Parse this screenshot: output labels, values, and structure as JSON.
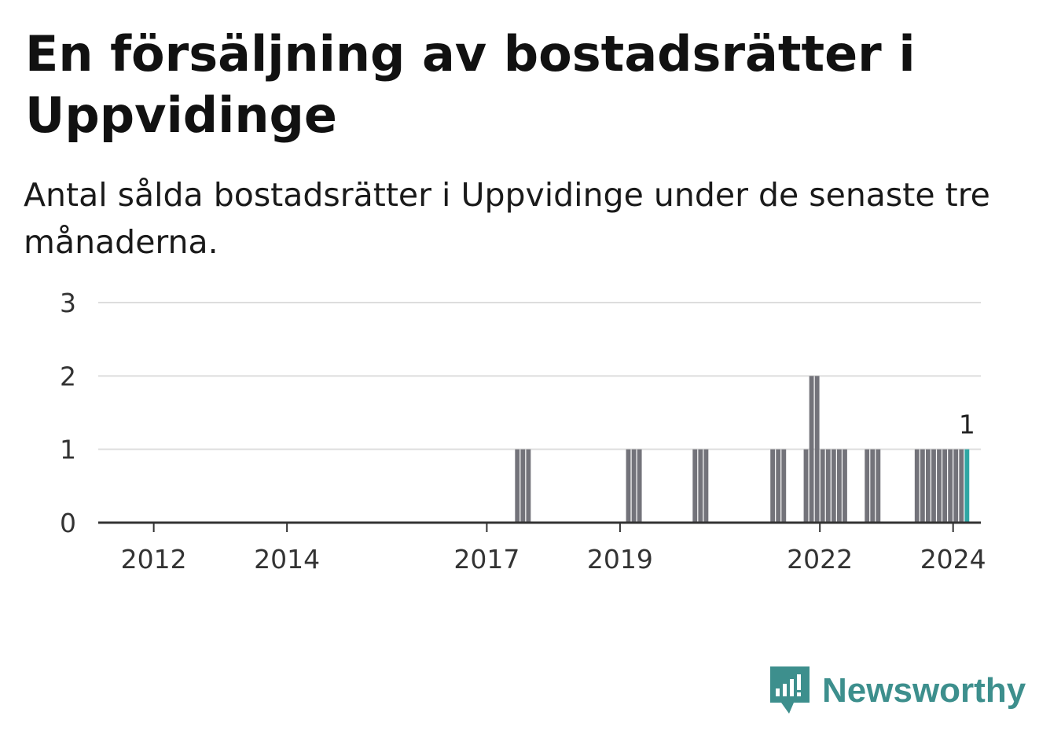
{
  "header": {
    "title": "En försäljning av bostadsrätter i Uppvidinge",
    "subtitle": "Antal sålda bostadsrätter i Uppvidinge under de senaste tre månaderna."
  },
  "brand": {
    "name": "Newsworthy",
    "icon": "newsworthy-logo-icon",
    "color": "#3d8f8d"
  },
  "chart_data": {
    "type": "bar",
    "title": "En försäljning av bostadsrätter i Uppvidinge",
    "subtitle": "Antal sålda bostadsrätter i Uppvidinge under de senaste tre månaderna.",
    "x_ticks": [
      {
        "label": "2012",
        "date": "2012-01"
      },
      {
        "label": "2014",
        "date": "2014-01"
      },
      {
        "label": "2017",
        "date": "2017-01"
      },
      {
        "label": "2019",
        "date": "2019-01"
      },
      {
        "label": "2022",
        "date": "2022-01"
      },
      {
        "label": "2024",
        "date": "2024-01"
      }
    ],
    "y_ticks": [
      0,
      1,
      2,
      3
    ],
    "ylim": [
      0,
      3
    ],
    "xlim": [
      "2011-03",
      "2024-06"
    ],
    "grid": true,
    "bar_color": "#73737a",
    "highlight_color": "#2ea6a3",
    "bars": [
      {
        "date": "2017-06",
        "value": 1
      },
      {
        "date": "2017-07",
        "value": 1
      },
      {
        "date": "2017-08",
        "value": 1
      },
      {
        "date": "2019-02",
        "value": 1
      },
      {
        "date": "2019-03",
        "value": 1
      },
      {
        "date": "2019-04",
        "value": 1
      },
      {
        "date": "2020-02",
        "value": 1
      },
      {
        "date": "2020-03",
        "value": 1
      },
      {
        "date": "2020-04",
        "value": 1
      },
      {
        "date": "2021-04",
        "value": 1
      },
      {
        "date": "2021-05",
        "value": 1
      },
      {
        "date": "2021-06",
        "value": 1
      },
      {
        "date": "2021-10",
        "value": 1
      },
      {
        "date": "2021-11",
        "value": 2
      },
      {
        "date": "2021-12",
        "value": 2
      },
      {
        "date": "2022-01",
        "value": 1
      },
      {
        "date": "2022-02",
        "value": 1
      },
      {
        "date": "2022-03",
        "value": 1
      },
      {
        "date": "2022-04",
        "value": 1
      },
      {
        "date": "2022-05",
        "value": 1
      },
      {
        "date": "2022-09",
        "value": 1
      },
      {
        "date": "2022-10",
        "value": 1
      },
      {
        "date": "2022-11",
        "value": 1
      },
      {
        "date": "2023-06",
        "value": 1
      },
      {
        "date": "2023-07",
        "value": 1
      },
      {
        "date": "2023-08",
        "value": 1
      },
      {
        "date": "2023-09",
        "value": 1
      },
      {
        "date": "2023-10",
        "value": 1
      },
      {
        "date": "2023-11",
        "value": 1
      },
      {
        "date": "2023-12",
        "value": 1
      },
      {
        "date": "2024-01",
        "value": 1
      },
      {
        "date": "2024-02",
        "value": 1
      },
      {
        "date": "2024-03",
        "value": 1,
        "highlight": true
      }
    ],
    "annotation": {
      "date": "2024-03",
      "value": 1,
      "label": "1"
    }
  }
}
